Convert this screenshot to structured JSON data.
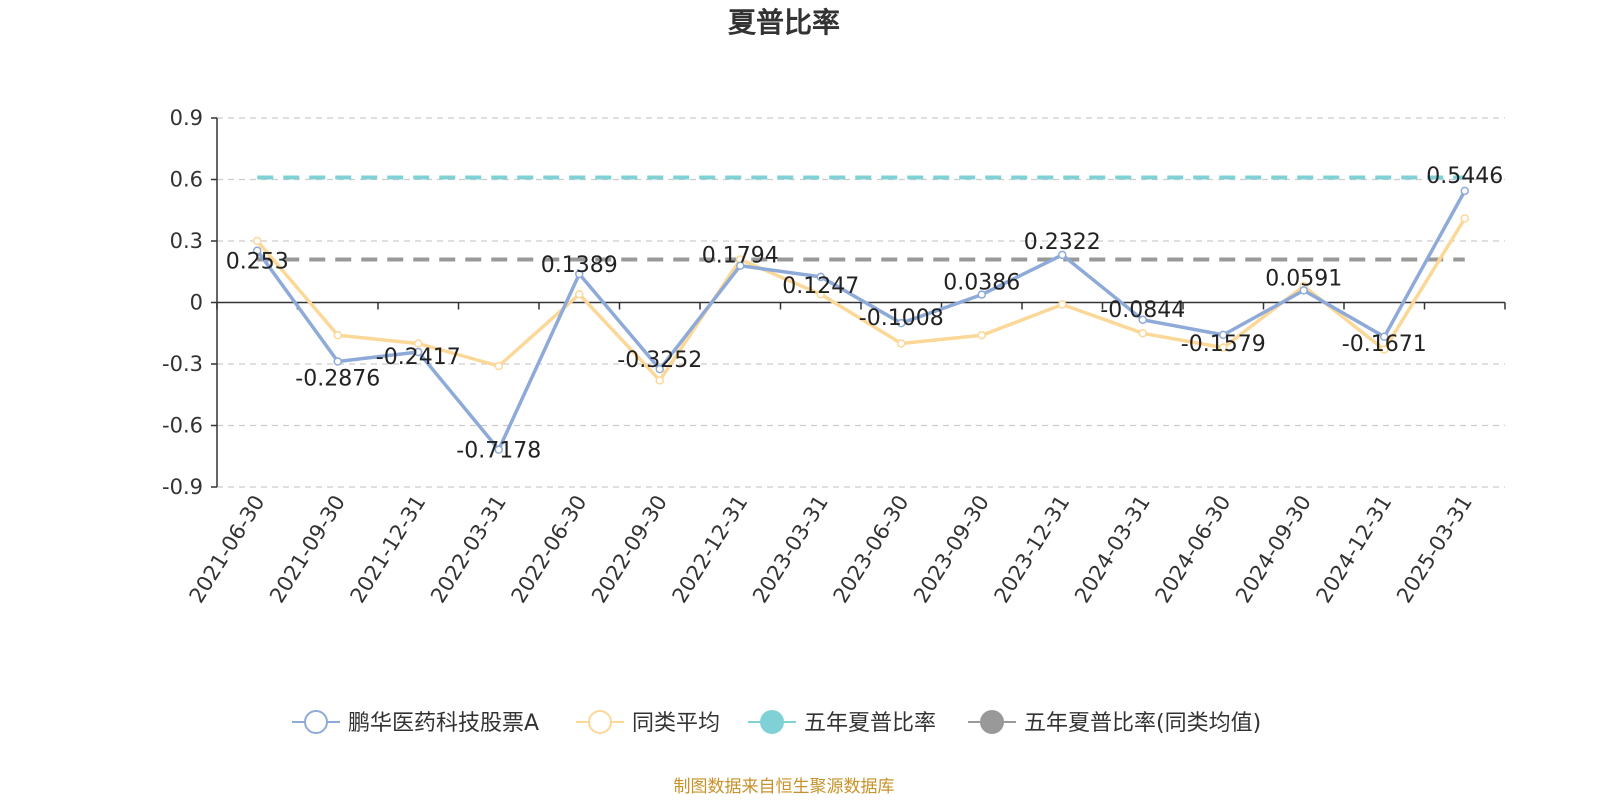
{
  "chart_data": {
    "type": "line",
    "title": "夏普比率",
    "categories": [
      "2021-06-30",
      "2021-09-30",
      "2021-12-31",
      "2022-03-31",
      "2022-06-30",
      "2022-09-30",
      "2022-12-31",
      "2023-03-31",
      "2023-06-30",
      "2023-09-30",
      "2023-12-31",
      "2024-03-31",
      "2024-06-30",
      "2024-09-30",
      "2024-12-31",
      "2025-03-31"
    ],
    "y_ticks": [
      "0.9",
      "0.6",
      "0.3",
      "0",
      "-0.3",
      "-0.6",
      "-0.9"
    ],
    "ylim": [
      -0.9,
      0.9
    ],
    "grid": true,
    "legend_position": "bottom",
    "series": [
      {
        "name": "鹏华医药科技股票A",
        "color": "#8eaad8",
        "values": [
          0.253,
          -0.2876,
          -0.2417,
          -0.7178,
          0.1389,
          -0.3252,
          0.1794,
          0.1247,
          -0.1008,
          0.0386,
          0.2322,
          -0.0844,
          -0.1579,
          0.0591,
          -0.1671,
          0.5446
        ],
        "labels": [
          "0.253",
          "-0.2876",
          "-0.2417",
          "-0.7178",
          "0.1389",
          "-0.3252",
          "0.1794",
          "0.1247",
          "-0.1008",
          "0.0386",
          "0.2322",
          "-0.0844",
          "-0.1579",
          "0.0591",
          "-0.1671",
          "0.5446"
        ]
      },
      {
        "name": "同类平均",
        "color": "#fcd898",
        "values": [
          0.3,
          -0.16,
          -0.2,
          -0.31,
          0.04,
          -0.38,
          0.21,
          0.04,
          -0.2,
          -0.16,
          -0.01,
          -0.15,
          -0.22,
          0.08,
          -0.23,
          0.41
        ]
      },
      {
        "name": "五年夏普比率",
        "color": "#7fd1d6",
        "constant": 0.61
      },
      {
        "name": "五年夏普比率(同类均值)",
        "color": "#999999",
        "constant": 0.21
      }
    ],
    "source": "制图数据来自恒生聚源数据库"
  }
}
